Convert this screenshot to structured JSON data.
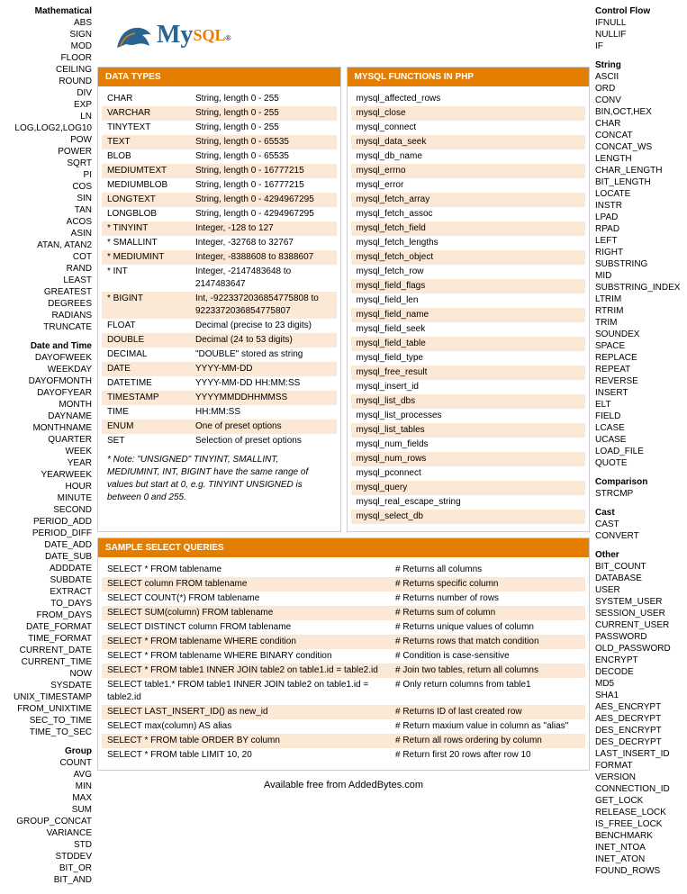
{
  "colors": {
    "accent": "#e47e00",
    "stripe": "#fbe8d5",
    "logoBlue": "#2a6490"
  },
  "logo": {
    "main": "My",
    "sub": "SQL",
    "tm": "®"
  },
  "leftCol": [
    {
      "heading": "Mathematical",
      "items": [
        "ABS",
        "SIGN",
        "MOD",
        "FLOOR",
        "CEILING",
        "ROUND",
        "DIV",
        "EXP",
        "LN",
        "LOG,LOG2,LOG10",
        "POW",
        "POWER",
        "SQRT",
        "PI",
        "COS",
        "SIN",
        "TAN",
        "ACOS",
        "ASIN",
        "ATAN, ATAN2",
        "COT",
        "RAND",
        "LEAST",
        "GREATEST",
        "DEGREES",
        "RADIANS",
        "TRUNCATE"
      ]
    },
    {
      "heading": "Date and Time",
      "items": [
        "DAYOFWEEK",
        "WEEKDAY",
        "DAYOFMONTH",
        "DAYOFYEAR",
        "MONTH",
        "DAYNAME",
        "MONTHNAME",
        "QUARTER",
        "WEEK",
        "YEAR",
        "YEARWEEK",
        "HOUR",
        "MINUTE",
        "SECOND",
        "PERIOD_ADD",
        "PERIOD_DIFF",
        "DATE_ADD",
        "DATE_SUB",
        "ADDDATE",
        "SUBDATE",
        "EXTRACT",
        "TO_DAYS",
        "FROM_DAYS",
        "DATE_FORMAT",
        "TIME_FORMAT",
        "CURRENT_DATE",
        "CURRENT_TIME",
        "NOW",
        "SYSDATE",
        "UNIX_TIMESTAMP",
        "FROM_UNIXTIME",
        "SEC_TO_TIME",
        "TIME_TO_SEC"
      ]
    },
    {
      "heading": "Group",
      "items": [
        "COUNT",
        "AVG",
        "MIN",
        "MAX",
        "SUM",
        "GROUP_CONCAT",
        "VARIANCE",
        "STD",
        "STDDEV",
        "BIT_OR",
        "BIT_AND"
      ]
    }
  ],
  "rightCol": [
    {
      "heading": "Control Flow",
      "items": [
        "IFNULL",
        "NULLIF",
        "IF"
      ]
    },
    {
      "heading": "String",
      "items": [
        "ASCII",
        "ORD",
        "CONV",
        "BIN,OCT,HEX",
        "CHAR",
        "CONCAT",
        "CONCAT_WS",
        "LENGTH",
        "CHAR_LENGTH",
        "BIT_LENGTH",
        "LOCATE",
        "INSTR",
        "LPAD",
        "RPAD",
        "LEFT",
        "RIGHT",
        "SUBSTRING",
        "MID",
        "SUBSTRING_INDEX",
        "LTRIM",
        "RTRIM",
        "TRIM",
        "SOUNDEX",
        "SPACE",
        "REPLACE",
        "REPEAT",
        "REVERSE",
        "INSERT",
        "ELT",
        "FIELD",
        "LCASE",
        "UCASE",
        "LOAD_FILE",
        "QUOTE"
      ]
    },
    {
      "heading": "Comparison",
      "items": [
        "STRCMP"
      ]
    },
    {
      "heading": "Cast",
      "items": [
        "CAST",
        "CONVERT"
      ]
    },
    {
      "heading": "Other",
      "items": [
        "BIT_COUNT",
        "DATABASE",
        "USER",
        "SYSTEM_USER",
        "SESSION_USER",
        "CURRENT_USER",
        "PASSWORD",
        "OLD_PASSWORD",
        "ENCRYPT",
        "DECODE",
        "MD5",
        "SHA1",
        "AES_ENCRYPT",
        "AES_DECRYPT",
        "DES_ENCRYPT",
        "DES_DECRYPT",
        "LAST_INSERT_ID",
        "FORMAT",
        "VERSION",
        "CONNECTION_ID",
        "GET_LOCK",
        "RELEASE_LOCK",
        "IS_FREE_LOCK",
        "BENCHMARK",
        "INET_NTOA",
        "INET_ATON",
        "FOUND_ROWS"
      ]
    }
  ],
  "dataTypes": {
    "title": "DATA TYPES",
    "rows": [
      {
        "n": "CHAR",
        "d": "String, length 0 - 255"
      },
      {
        "n": "VARCHAR",
        "d": "String, length 0 - 255"
      },
      {
        "n": "TINYTEXT",
        "d": "String, length 0 - 255"
      },
      {
        "n": "TEXT",
        "d": "String, length 0 - 65535"
      },
      {
        "n": "BLOB",
        "d": "String, length 0 - 65535"
      },
      {
        "n": "MEDIUMTEXT",
        "d": "String, length 0 - 16777215"
      },
      {
        "n": "MEDIUMBLOB",
        "d": "String, length 0 - 16777215"
      },
      {
        "n": "LONGTEXT",
        "d": "String, length 0 - 4294967295"
      },
      {
        "n": "LONGBLOB",
        "d": "String, length 0 - 4294967295"
      },
      {
        "n": "* TINYINT",
        "d": "Integer, -128 to 127"
      },
      {
        "n": "* SMALLINT",
        "d": "Integer, -32768 to 32767"
      },
      {
        "n": "* MEDIUMINT",
        "d": "Integer, -8388608 to 8388607"
      },
      {
        "n": "* INT",
        "d": "Integer, -2147483648 to 2147483647"
      },
      {
        "n": "* BIGINT",
        "d": "Int, -9223372036854775808 to 9223372036854775807"
      },
      {
        "n": "FLOAT",
        "d": "Decimal (precise to 23 digits)"
      },
      {
        "n": "DOUBLE",
        "d": "Decimal (24 to 53 digits)"
      },
      {
        "n": "DECIMAL",
        "d": "\"DOUBLE\" stored as string"
      },
      {
        "n": "DATE",
        "d": "YYYY-MM-DD"
      },
      {
        "n": "DATETIME",
        "d": "YYYY-MM-DD HH:MM:SS"
      },
      {
        "n": "TIMESTAMP",
        "d": "YYYYMMDDHHMMSS"
      },
      {
        "n": "TIME",
        "d": "HH:MM:SS"
      },
      {
        "n": "ENUM",
        "d": "One of preset options"
      },
      {
        "n": "SET",
        "d": "Selection of preset options"
      }
    ],
    "note": "* Note: \"UNSIGNED\" TINYINT, SMALLINT, MEDIUMINT, INT, BIGINT have the same range of values but start at 0, e.g. TINYINT UNSIGNED is between 0 and 255."
  },
  "phpFunctions": {
    "title": "MYSQL FUNCTIONS IN PHP",
    "rows": [
      "mysql_affected_rows",
      "mysql_close",
      "mysql_connect",
      "mysql_data_seek",
      "mysql_db_name",
      "mysql_errno",
      "mysql_error",
      "mysql_fetch_array",
      "mysql_fetch_assoc",
      "mysql_fetch_field",
      "mysql_fetch_lengths",
      "mysql_fetch_object",
      "mysql_fetch_row",
      "mysql_field_flags",
      "mysql_field_len",
      "mysql_field_name",
      "mysql_field_seek",
      "mysql_field_table",
      "mysql_field_type",
      "mysql_free_result",
      "mysql_insert_id",
      "mysql_list_dbs",
      "mysql_list_processes",
      "mysql_list_tables",
      "mysql_num_fields",
      "mysql_num_rows",
      "mysql_pconnect",
      "mysql_query",
      "mysql_real_escape_string",
      "mysql_select_db"
    ]
  },
  "queries": {
    "title": "SAMPLE SELECT QUERIES",
    "rows": [
      {
        "q": "SELECT * FROM tablename",
        "d": "# Returns all columns"
      },
      {
        "q": "SELECT column FROM tablename",
        "d": "# Returns specific column"
      },
      {
        "q": "SELECT COUNT(*) FROM tablename",
        "d": "# Returns number of rows"
      },
      {
        "q": "SELECT SUM(column) FROM tablename",
        "d": "# Returns sum of column"
      },
      {
        "q": "SELECT DISTINCT column FROM tablename",
        "d": "# Returns unique values of column"
      },
      {
        "q": "SELECT * FROM tablename WHERE condition",
        "d": "# Returns rows that match condition"
      },
      {
        "q": "SELECT * FROM tablename WHERE BINARY condition",
        "d": "# Condition is case-sensitive"
      },
      {
        "q": "SELECT * FROM table1 INNER JOIN table2 on table1.id = table2.id",
        "d": "# Join two tables, return all columns"
      },
      {
        "q": "SELECT table1.* FROM table1 INNER JOIN table2 on table1.id = table2.id",
        "d": "# Only return columns from table1"
      },
      {
        "q": "SELECT LAST_INSERT_ID() as new_id",
        "d": "# Returns ID of last created row"
      },
      {
        "q": "SELECT max(column) AS alias",
        "d": "# Return maxium value in column as \"alias\""
      },
      {
        "q": "SELECT * FROM table ORDER BY column",
        "d": "# Return all rows ordering by column"
      },
      {
        "q": "SELECT * FROM table LIMIT 10, 20",
        "d": "# Return first 20 rows after row 10"
      }
    ]
  },
  "footer": "Available free from AddedBytes.com"
}
